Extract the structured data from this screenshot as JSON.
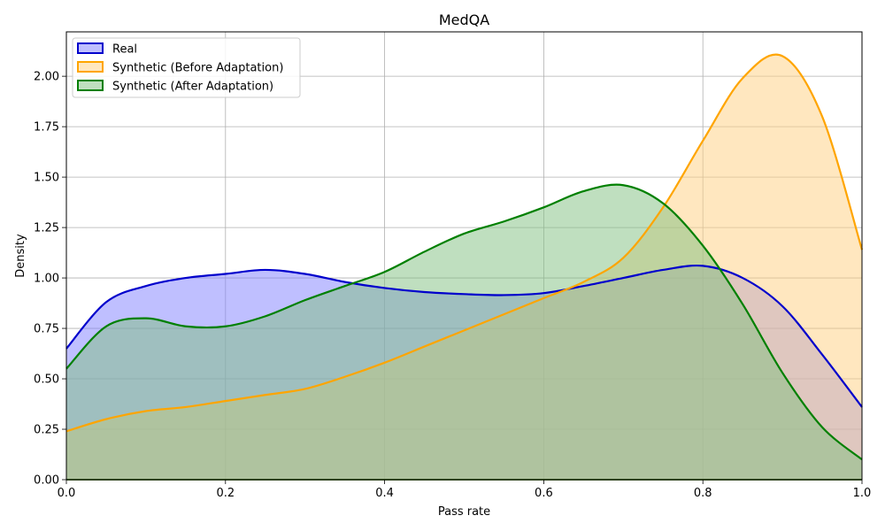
{
  "chart_data": {
    "type": "area",
    "title": "MedQA",
    "xlabel": "Pass rate",
    "ylabel": "Density",
    "xlim": [
      0,
      1
    ],
    "ylim": [
      0,
      2.22
    ],
    "xticks": [
      "0.0",
      "0.2",
      "0.4",
      "0.6",
      "0.8",
      "1.0"
    ],
    "yticks": [
      "0.00",
      "0.25",
      "0.50",
      "0.75",
      "1.00",
      "1.25",
      "1.50",
      "1.75",
      "2.00"
    ],
    "grid": true,
    "legend_position": "top-left",
    "x": [
      0.0,
      0.05,
      0.1,
      0.15,
      0.2,
      0.25,
      0.3,
      0.35,
      0.4,
      0.45,
      0.5,
      0.55,
      0.6,
      0.65,
      0.7,
      0.75,
      0.8,
      0.85,
      0.9,
      0.95,
      1.0
    ],
    "series": [
      {
        "name": "Real",
        "color": "#0000cc",
        "fill": "#8080ff",
        "values": [
          0.65,
          0.88,
          0.96,
          1.0,
          1.02,
          1.04,
          1.02,
          0.98,
          0.95,
          0.93,
          0.92,
          0.915,
          0.925,
          0.96,
          1.0,
          1.04,
          1.06,
          1.0,
          0.86,
          0.62,
          0.36
        ]
      },
      {
        "name": "Synthetic (Before Adaptation)",
        "color": "#ffa500",
        "fill": "#ffd080",
        "values": [
          0.24,
          0.3,
          0.34,
          0.36,
          0.39,
          0.42,
          0.45,
          0.51,
          0.58,
          0.66,
          0.74,
          0.82,
          0.9,
          0.98,
          1.1,
          1.35,
          1.68,
          1.99,
          2.1,
          1.8,
          1.14
        ]
      },
      {
        "name": "Synthetic (After Adaptation)",
        "color": "#008000",
        "fill": "#80c080",
        "values": [
          0.55,
          0.76,
          0.8,
          0.76,
          0.76,
          0.81,
          0.89,
          0.96,
          1.03,
          1.13,
          1.22,
          1.28,
          1.35,
          1.43,
          1.46,
          1.37,
          1.16,
          0.87,
          0.53,
          0.26,
          0.1
        ]
      }
    ]
  }
}
